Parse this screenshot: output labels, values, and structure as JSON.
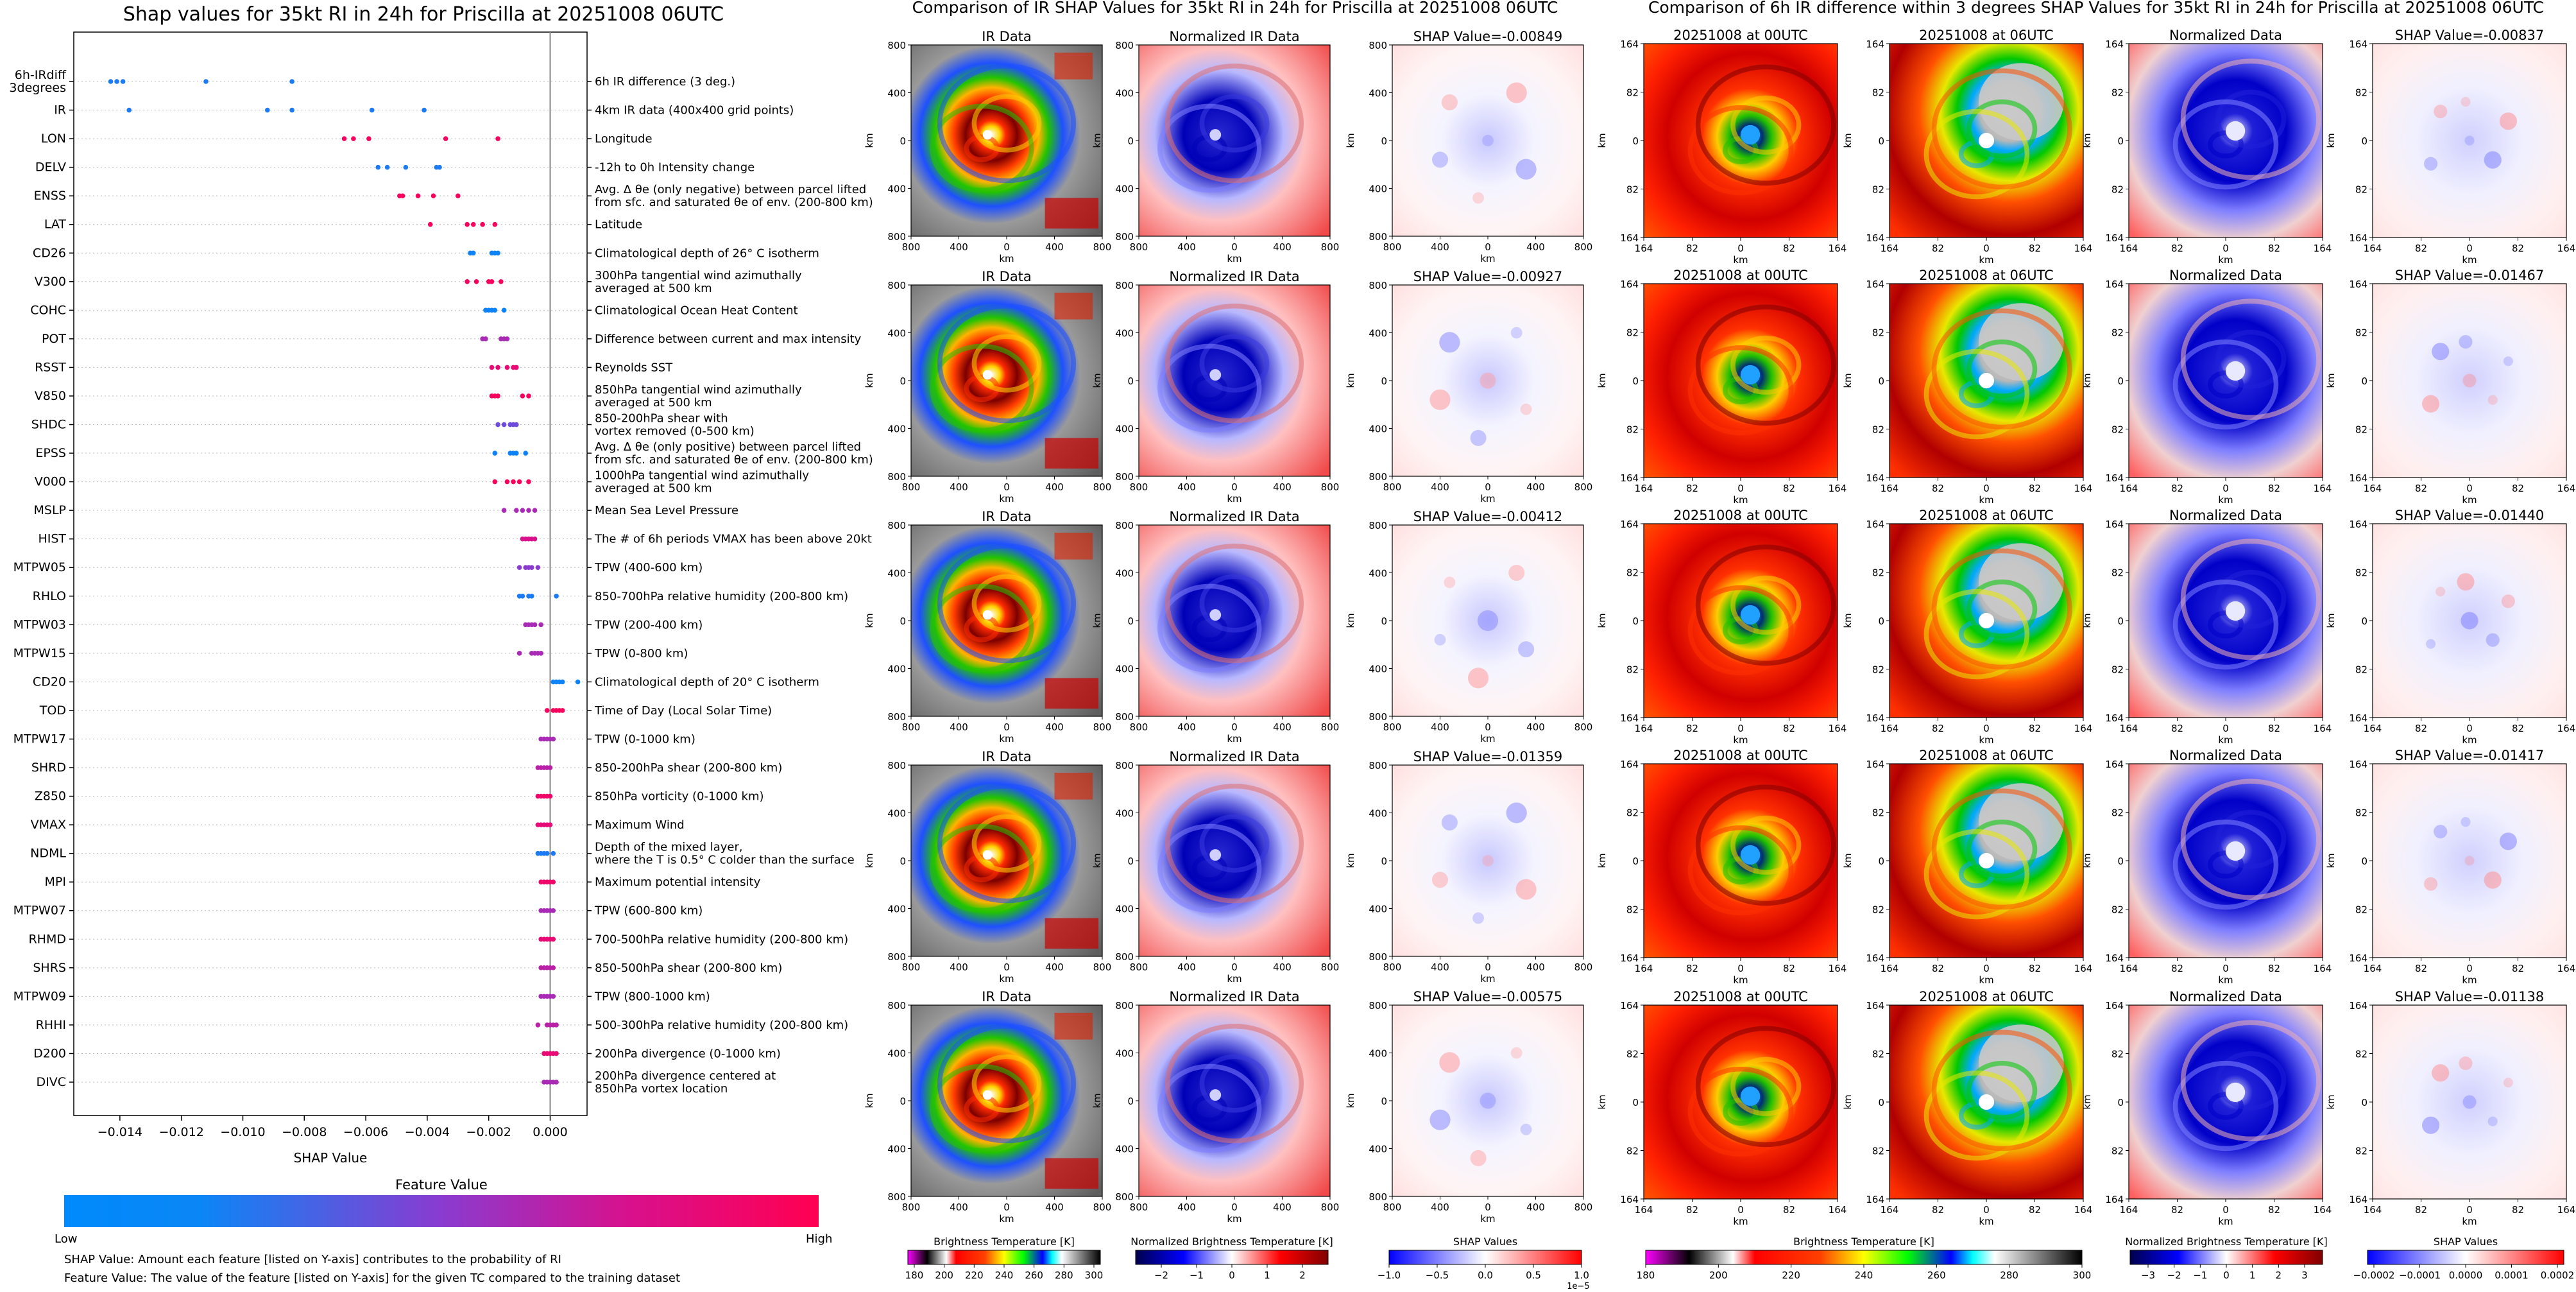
{
  "left": {
    "title": "Shap values for 35kt RI in 24h for Priscilla at 20251008 06UTC",
    "xlabel": "SHAP Value",
    "colorbar": {
      "title": "Feature Value",
      "low": "Low",
      "high": "High",
      "low_color": "#008afb",
      "high_color": "#ff0052"
    },
    "notes": [
      "SHAP Value: Amount each feature [listed on Y-axis] contributes to the probability of RI",
      "Feature Value: The value of the feature [listed on Y-axis] for the given TC compared to the training dataset"
    ]
  },
  "mid": {
    "title": "Comparison of IR SHAP Values for 35kt RI in 24h for Priscilla at 20251008 06UTC",
    "panel_titles": [
      "IR Data",
      "Normalized IR Data"
    ],
    "shap_prefix": "SHAP Value=",
    "shap_values": [
      "-0.00849",
      "-0.00927",
      "-0.00412",
      "-0.01359",
      "-0.00575"
    ],
    "ticks": [
      "800",
      "400",
      "0",
      "400",
      "800"
    ],
    "axis_label": "km",
    "colorbars": [
      {
        "label": "Brightness Temperature [K]",
        "ticks": [
          "180",
          "200",
          "220",
          "240",
          "260",
          "280",
          "300"
        ]
      },
      {
        "label": "Normalized Brightness Temperature [K]",
        "ticks": [
          "−2",
          "−1",
          "0",
          "1",
          "2"
        ]
      },
      {
        "label": "SHAP Values",
        "ticks": [
          "−1.0",
          "−0.5",
          "0.0",
          "0.5",
          "1.0"
        ],
        "offset": "1e−5"
      }
    ]
  },
  "right": {
    "title": "Comparison of 6h IR difference within 3 degrees SHAP Values for 35kt RI in 24h for Priscilla at 20251008 06UTC",
    "panel_titles": [
      "20251008 at 00UTC",
      "20251008 at 06UTC",
      "Normalized Data"
    ],
    "shap_prefix": "SHAP Value=",
    "shap_values": [
      "-0.00837",
      "-0.01467",
      "-0.01440",
      "-0.01417",
      "-0.01138"
    ],
    "ticks": [
      "164",
      "82",
      "0",
      "82",
      "164"
    ],
    "axis_label": "km",
    "colorbars": [
      {
        "label": "Brightness Temperature [K]",
        "ticks": [
          "180",
          "200",
          "220",
          "240",
          "260",
          "280",
          "300"
        ]
      },
      {
        "label": "Normalized Brightness Temperature [K]",
        "ticks": [
          "−3",
          "−2",
          "−1",
          "0",
          "1",
          "2",
          "3"
        ]
      },
      {
        "label": "SHAP Values",
        "ticks": [
          "−0.0002",
          "−0.0001",
          "0.0000",
          "0.0001",
          "0.0002"
        ]
      }
    ]
  },
  "chart_data": {
    "type": "scatter",
    "title": "Shap values for 35kt RI in 24h for Priscilla at 20251008 06UTC",
    "xlabel": "SHAP Value",
    "ylabel": "",
    "xlim": [
      -0.0155,
      0.0012
    ],
    "xticks": [
      -0.014,
      -0.012,
      -0.01,
      -0.008,
      -0.006,
      -0.004,
      -0.002,
      0.0
    ],
    "xtick_labels": [
      "−0.014",
      "−0.012",
      "−0.010",
      "−0.008",
      "−0.006",
      "−0.004",
      "−0.002",
      "0.000"
    ],
    "features": [
      {
        "name": "6h-IRdiff\n3degrees",
        "desc": "6h IR difference (3 deg.)",
        "points": [
          [
            -0.0143,
            0.1
          ],
          [
            -0.0141,
            0.1
          ],
          [
            -0.0139,
            0.1
          ],
          [
            -0.0112,
            0.1
          ],
          [
            -0.0084,
            0.1
          ]
        ]
      },
      {
        "name": "IR",
        "desc": "4km IR data (400x400 grid points)",
        "points": [
          [
            -0.0137,
            0.1
          ],
          [
            -0.0092,
            0.1
          ],
          [
            -0.0084,
            0.1
          ],
          [
            -0.0058,
            0.1
          ],
          [
            -0.0041,
            0.1
          ]
        ]
      },
      {
        "name": "LON",
        "desc": "Longitude",
        "points": [
          [
            -0.0067,
            0.95
          ],
          [
            -0.0064,
            0.95
          ],
          [
            -0.0059,
            0.95
          ],
          [
            -0.0034,
            0.95
          ],
          [
            -0.0017,
            0.95
          ]
        ]
      },
      {
        "name": "DELV",
        "desc": "-12h to 0h Intensity change",
        "points": [
          [
            -0.0056,
            0.1
          ],
          [
            -0.0053,
            0.1
          ],
          [
            -0.0047,
            0.1
          ],
          [
            -0.0037,
            0.1
          ],
          [
            -0.0036,
            0.1
          ]
        ]
      },
      {
        "name": "ENSS",
        "desc": "Avg. Δ θe (only negative) between parcel lifted\nfrom sfc. and saturated θe of env. (200-800 km)",
        "points": [
          [
            -0.0049,
            0.95
          ],
          [
            -0.0048,
            0.95
          ],
          [
            -0.0043,
            0.95
          ],
          [
            -0.0038,
            0.95
          ],
          [
            -0.003,
            0.95
          ]
        ]
      },
      {
        "name": "LAT",
        "desc": "Latitude",
        "points": [
          [
            -0.0039,
            0.95
          ],
          [
            -0.0027,
            0.95
          ],
          [
            -0.0025,
            0.95
          ],
          [
            -0.0022,
            0.95
          ],
          [
            -0.0018,
            0.95
          ]
        ]
      },
      {
        "name": "CD26",
        "desc": "Climatological depth of 26° C isotherm",
        "points": [
          [
            -0.0026,
            0.05
          ],
          [
            -0.0025,
            0.05
          ],
          [
            -0.0019,
            0.05
          ],
          [
            -0.0018,
            0.05
          ],
          [
            -0.0017,
            0.05
          ]
        ]
      },
      {
        "name": "V300",
        "desc": "300hPa tangential wind azimuthally\naveraged at 500 km",
        "points": [
          [
            -0.0027,
            0.95
          ],
          [
            -0.0024,
            0.95
          ],
          [
            -0.002,
            0.95
          ],
          [
            -0.0019,
            0.95
          ],
          [
            -0.0016,
            0.95
          ]
        ]
      },
      {
        "name": "COHC",
        "desc": "Climatological Ocean Heat Content",
        "points": [
          [
            -0.0021,
            0.05
          ],
          [
            -0.002,
            0.05
          ],
          [
            -0.0019,
            0.05
          ],
          [
            -0.0018,
            0.05
          ],
          [
            -0.0015,
            0.05
          ]
        ]
      },
      {
        "name": "POT",
        "desc": "Difference between current and max intensity",
        "points": [
          [
            -0.0022,
            0.6
          ],
          [
            -0.0021,
            0.6
          ],
          [
            -0.0016,
            0.6
          ],
          [
            -0.0015,
            0.6
          ],
          [
            -0.0014,
            0.6
          ]
        ]
      },
      {
        "name": "RSST",
        "desc": "Reynolds SST",
        "points": [
          [
            -0.0019,
            0.85
          ],
          [
            -0.0017,
            0.85
          ],
          [
            -0.0014,
            0.85
          ],
          [
            -0.0012,
            0.85
          ],
          [
            -0.0011,
            0.85
          ]
        ]
      },
      {
        "name": "V850",
        "desc": "850hPa tangential wind azimuthally\naveraged at 500 km",
        "points": [
          [
            -0.0019,
            0.95
          ],
          [
            -0.0018,
            0.95
          ],
          [
            -0.0017,
            0.95
          ],
          [
            -0.0009,
            0.95
          ],
          [
            -0.0007,
            0.95
          ]
        ]
      },
      {
        "name": "SHDC",
        "desc": "850-200hPa shear with\nvortex removed (0-500 km)",
        "points": [
          [
            -0.0017,
            0.4
          ],
          [
            -0.0015,
            0.4
          ],
          [
            -0.0013,
            0.4
          ],
          [
            -0.0012,
            0.4
          ],
          [
            -0.0011,
            0.4
          ]
        ]
      },
      {
        "name": "EPSS",
        "desc": "Avg. Δ θe (only positive) between parcel lifted\nfrom sfc. and saturated θe of env. (200-800 km)",
        "points": [
          [
            -0.0018,
            0.05
          ],
          [
            -0.0013,
            0.05
          ],
          [
            -0.0012,
            0.05
          ],
          [
            -0.0011,
            0.05
          ],
          [
            -0.0008,
            0.05
          ]
        ]
      },
      {
        "name": "V000",
        "desc": "1000hPa tangential wind azimuthally\naveraged at 500 km",
        "points": [
          [
            -0.0018,
            0.95
          ],
          [
            -0.0014,
            0.95
          ],
          [
            -0.0012,
            0.95
          ],
          [
            -0.001,
            0.95
          ],
          [
            -0.0007,
            0.95
          ]
        ]
      },
      {
        "name": "MSLP",
        "desc": "Mean Sea Level Pressure",
        "points": [
          [
            -0.0015,
            0.6
          ],
          [
            -0.0011,
            0.6
          ],
          [
            -0.0009,
            0.6
          ],
          [
            -0.0007,
            0.6
          ],
          [
            -0.0005,
            0.6
          ]
        ]
      },
      {
        "name": "HIST",
        "desc": "The # of 6h periods VMAX has been above 20kt",
        "points": [
          [
            -0.0009,
            0.75
          ],
          [
            -0.0008,
            0.75
          ],
          [
            -0.0007,
            0.75
          ],
          [
            -0.0006,
            0.75
          ],
          [
            -0.0005,
            0.75
          ]
        ]
      },
      {
        "name": "MTPW05",
        "desc": "TPW (400-600 km)",
        "points": [
          [
            -0.001,
            0.5
          ],
          [
            -0.0008,
            0.5
          ],
          [
            -0.0007,
            0.5
          ],
          [
            -0.0006,
            0.5
          ],
          [
            -0.0004,
            0.5
          ]
        ]
      },
      {
        "name": "RHLO",
        "desc": "850-700hPa relative humidity (200-800 km)",
        "points": [
          [
            -0.001,
            0.1
          ],
          [
            -0.0009,
            0.1
          ],
          [
            -0.0007,
            0.1
          ],
          [
            -0.0006,
            0.1
          ],
          [
            0.0002,
            0.1
          ]
        ]
      },
      {
        "name": "MTPW03",
        "desc": "TPW (200-400 km)",
        "points": [
          [
            -0.0008,
            0.6
          ],
          [
            -0.0007,
            0.6
          ],
          [
            -0.0006,
            0.6
          ],
          [
            -0.0005,
            0.6
          ],
          [
            -0.0003,
            0.6
          ]
        ]
      },
      {
        "name": "MTPW15",
        "desc": "TPW (0-800 km)",
        "points": [
          [
            -0.001,
            0.6
          ],
          [
            -0.0006,
            0.6
          ],
          [
            -0.0005,
            0.6
          ],
          [
            -0.0004,
            0.6
          ],
          [
            -0.0003,
            0.6
          ]
        ]
      },
      {
        "name": "CD20",
        "desc": "Climatological depth of 20° C isotherm",
        "points": [
          [
            0.0001,
            0.05
          ],
          [
            0.0002,
            0.05
          ],
          [
            0.0003,
            0.05
          ],
          [
            0.0004,
            0.05
          ],
          [
            0.0009,
            0.05
          ]
        ]
      },
      {
        "name": "TOD",
        "desc": "Time of Day (Local Solar Time)",
        "points": [
          [
            -0.0001,
            0.95
          ],
          [
            0.0001,
            0.95
          ],
          [
            0.0002,
            0.95
          ],
          [
            0.0003,
            0.95
          ],
          [
            0.0004,
            0.95
          ]
        ]
      },
      {
        "name": "MTPW17",
        "desc": "TPW (0-1000 km)",
        "points": [
          [
            -0.0003,
            0.6
          ],
          [
            -0.0002,
            0.6
          ],
          [
            -0.0001,
            0.6
          ],
          [
            0.0,
            0.6
          ],
          [
            0.0001,
            0.6
          ]
        ]
      },
      {
        "name": "SHRD",
        "desc": "850-200hPa shear (200-800 km)",
        "points": [
          [
            -0.0004,
            0.65
          ],
          [
            -0.0003,
            0.65
          ],
          [
            -0.0002,
            0.65
          ],
          [
            -0.0001,
            0.65
          ],
          [
            0.0,
            0.65
          ]
        ]
      },
      {
        "name": "Z850",
        "desc": "850hPa vorticity (0-1000 km)",
        "points": [
          [
            -0.0004,
            0.9
          ],
          [
            -0.0003,
            0.9
          ],
          [
            -0.0002,
            0.9
          ],
          [
            -0.0001,
            0.9
          ],
          [
            0.0,
            0.9
          ]
        ]
      },
      {
        "name": "VMAX",
        "desc": "Maximum Wind",
        "points": [
          [
            -0.0004,
            0.85
          ],
          [
            -0.0003,
            0.85
          ],
          [
            -0.0002,
            0.85
          ],
          [
            -0.0001,
            0.85
          ],
          [
            0.0,
            0.85
          ]
        ]
      },
      {
        "name": "NDML",
        "desc": "Depth of the mixed layer,\nwhere the T is 0.5° C colder than the surface",
        "points": [
          [
            -0.0004,
            0.1
          ],
          [
            -0.0003,
            0.1
          ],
          [
            -0.0002,
            0.1
          ],
          [
            -0.0001,
            0.1
          ],
          [
            0.0001,
            0.1
          ]
        ]
      },
      {
        "name": "MPI",
        "desc": "Maximum potential intensity",
        "points": [
          [
            -0.0003,
            0.9
          ],
          [
            -0.0002,
            0.9
          ],
          [
            -0.0001,
            0.9
          ],
          [
            0.0,
            0.9
          ],
          [
            0.0001,
            0.9
          ]
        ]
      },
      {
        "name": "MTPW07",
        "desc": "TPW (600-800 km)",
        "points": [
          [
            -0.0003,
            0.6
          ],
          [
            -0.0002,
            0.6
          ],
          [
            -0.0001,
            0.6
          ],
          [
            0.0,
            0.6
          ],
          [
            0.0001,
            0.6
          ]
        ]
      },
      {
        "name": "RHMD",
        "desc": "700-500hPa relative humidity (200-800 km)",
        "points": [
          [
            -0.0003,
            0.85
          ],
          [
            -0.0002,
            0.85
          ],
          [
            -0.0001,
            0.85
          ],
          [
            0.0,
            0.85
          ],
          [
            0.0001,
            0.85
          ]
        ]
      },
      {
        "name": "SHRS",
        "desc": "850-500hPa shear (200-800 km)",
        "points": [
          [
            -0.0003,
            0.65
          ],
          [
            -0.0002,
            0.65
          ],
          [
            -0.0001,
            0.65
          ],
          [
            0.0,
            0.65
          ],
          [
            0.0001,
            0.65
          ]
        ]
      },
      {
        "name": "MTPW09",
        "desc": "TPW (800-1000 km)",
        "points": [
          [
            -0.0003,
            0.6
          ],
          [
            -0.0002,
            0.6
          ],
          [
            -0.0001,
            0.6
          ],
          [
            0.0,
            0.6
          ],
          [
            0.0001,
            0.6
          ]
        ]
      },
      {
        "name": "RHHI",
        "desc": "500-300hPa relative humidity (200-800 km)",
        "points": [
          [
            -0.0004,
            0.65
          ],
          [
            -0.0001,
            0.65
          ],
          [
            0.0,
            0.65
          ],
          [
            0.0001,
            0.65
          ],
          [
            0.0002,
            0.65
          ]
        ]
      },
      {
        "name": "D200",
        "desc": "200hPa divergence (0-1000 km)",
        "points": [
          [
            -0.0002,
            0.85
          ],
          [
            -0.0001,
            0.85
          ],
          [
            0.0,
            0.85
          ],
          [
            0.0001,
            0.85
          ],
          [
            0.0002,
            0.85
          ]
        ]
      },
      {
        "name": "DIVC",
        "desc": "200hPa divergence centered at\n850hPa vortex location",
        "points": [
          [
            -0.0002,
            0.6
          ],
          [
            -0.0001,
            0.6
          ],
          [
            0.0,
            0.6
          ],
          [
            0.0001,
            0.6
          ],
          [
            0.0002,
            0.6
          ]
        ]
      }
    ]
  }
}
